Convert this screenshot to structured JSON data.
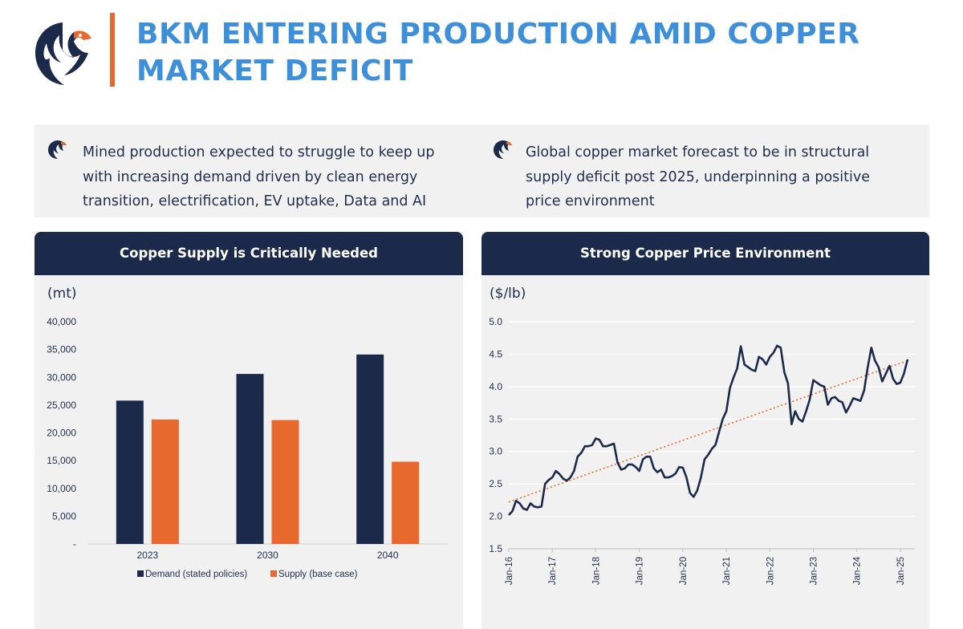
{
  "header": {
    "title": "BKM ENTERING PRODUCTION AMID COPPER MARKET DEFICIT",
    "logo_icon": "eagle-logo-icon",
    "accent_color": "#e8692e",
    "title_color": "#3d8fd9"
  },
  "bullets": [
    {
      "icon": "eagle-bullet-icon",
      "text": "Mined production expected to struggle to keep up with increasing demand driven by clean energy transition, electrification, EV uptake, Data and AI"
    },
    {
      "icon": "eagle-bullet-icon",
      "text": "Global copper market forecast to be in structural supply deficit post 2025, underpinning a positive price environment"
    }
  ],
  "panels": {
    "left": {
      "title": "Copper Supply is Critically Needed",
      "unit": "(mt)"
    },
    "right": {
      "title": "Strong Copper Price Environment",
      "unit": "($/lb)"
    }
  },
  "colors": {
    "navy": "#1b2a4b",
    "orange": "#e8692e",
    "panel_bg": "#f1f1f1"
  },
  "chart_data": [
    {
      "type": "bar",
      "title": "Copper Supply is Critically Needed",
      "ylabel": "(mt)",
      "categories": [
        "2023",
        "2030",
        "2040"
      ],
      "series": [
        {
          "name": "Demand (stated policies)",
          "color": "#1b2a4b",
          "values": [
            25800,
            30600,
            34100
          ]
        },
        {
          "name": "Supply (base case)",
          "color": "#e8692e",
          "values": [
            22400,
            22300,
            14800
          ]
        }
      ],
      "ylim": [
        0,
        40000
      ],
      "yticks": [
        0,
        5000,
        10000,
        15000,
        20000,
        25000,
        30000,
        35000,
        40000
      ],
      "ytick_labels": [
        "-",
        "5,000",
        "10,000",
        "15,000",
        "20,000",
        "25,000",
        "30,000",
        "35,000",
        "40,000"
      ],
      "grid": false,
      "legend": "bottom"
    },
    {
      "type": "line",
      "title": "Strong Copper Price Environment",
      "ylabel": "($/lb)",
      "ylim": [
        1.5,
        5.0
      ],
      "yticks": [
        1.5,
        2.0,
        2.5,
        3.0,
        3.5,
        4.0,
        4.5,
        5.0
      ],
      "ytick_labels": [
        "1.5",
        "2.0",
        "2.5",
        "3.0",
        "3.5",
        "4.0",
        "4.5",
        "5.0"
      ],
      "xlim": [
        "2016-01",
        "2025-05"
      ],
      "xticks": [
        "2016-01",
        "2017-01",
        "2018-01",
        "2019-01",
        "2020-01",
        "2021-01",
        "2022-01",
        "2023-01",
        "2024-01",
        "2025-01"
      ],
      "xtick_labels": [
        "Jan-16",
        "Jan-17",
        "Jan-18",
        "Jan-19",
        "Jan-20",
        "Jan-21",
        "Jan-22",
        "Jan-23",
        "Jan-24",
        "Jan-25"
      ],
      "grid": true,
      "series": [
        {
          "color": "#1b2a4b",
          "points": [
            [
              "2016-01",
              2.02
            ],
            [
              "2016-02",
              2.08
            ],
            [
              "2016-03",
              2.24
            ],
            [
              "2016-04",
              2.2
            ],
            [
              "2016-05",
              2.12
            ],
            [
              "2016-06",
              2.1
            ],
            [
              "2016-07",
              2.2
            ],
            [
              "2016-08",
              2.15
            ],
            [
              "2016-09",
              2.14
            ],
            [
              "2016-10",
              2.15
            ],
            [
              "2016-11",
              2.5
            ],
            [
              "2016-12",
              2.56
            ],
            [
              "2017-01",
              2.6
            ],
            [
              "2017-02",
              2.7
            ],
            [
              "2017-03",
              2.65
            ],
            [
              "2017-04",
              2.58
            ],
            [
              "2017-05",
              2.55
            ],
            [
              "2017-06",
              2.6
            ],
            [
              "2017-07",
              2.7
            ],
            [
              "2017-08",
              2.92
            ],
            [
              "2017-09",
              2.98
            ],
            [
              "2017-10",
              3.08
            ],
            [
              "2017-11",
              3.08
            ],
            [
              "2017-12",
              3.1
            ],
            [
              "2018-01",
              3.2
            ],
            [
              "2018-02",
              3.18
            ],
            [
              "2018-03",
              3.08
            ],
            [
              "2018-04",
              3.08
            ],
            [
              "2018-05",
              3.1
            ],
            [
              "2018-06",
              3.12
            ],
            [
              "2018-07",
              2.83
            ],
            [
              "2018-08",
              2.72
            ],
            [
              "2018-09",
              2.74
            ],
            [
              "2018-10",
              2.8
            ],
            [
              "2018-11",
              2.8
            ],
            [
              "2018-12",
              2.76
            ],
            [
              "2019-01",
              2.7
            ],
            [
              "2019-02",
              2.88
            ],
            [
              "2019-03",
              2.92
            ],
            [
              "2019-04",
              2.92
            ],
            [
              "2019-05",
              2.74
            ],
            [
              "2019-06",
              2.68
            ],
            [
              "2019-07",
              2.72
            ],
            [
              "2019-08",
              2.6
            ],
            [
              "2019-09",
              2.6
            ],
            [
              "2019-10",
              2.62
            ],
            [
              "2019-11",
              2.66
            ],
            [
              "2019-12",
              2.76
            ],
            [
              "2020-01",
              2.75
            ],
            [
              "2020-02",
              2.6
            ],
            [
              "2020-03",
              2.36
            ],
            [
              "2020-04",
              2.3
            ],
            [
              "2020-05",
              2.4
            ],
            [
              "2020-06",
              2.6
            ],
            [
              "2020-07",
              2.88
            ],
            [
              "2020-08",
              2.95
            ],
            [
              "2020-09",
              3.04
            ],
            [
              "2020-10",
              3.1
            ],
            [
              "2020-11",
              3.3
            ],
            [
              "2020-12",
              3.5
            ],
            [
              "2021-01",
              3.62
            ],
            [
              "2021-02",
              3.98
            ],
            [
              "2021-03",
              4.14
            ],
            [
              "2021-04",
              4.28
            ],
            [
              "2021-05",
              4.62
            ],
            [
              "2021-06",
              4.34
            ],
            [
              "2021-07",
              4.3
            ],
            [
              "2021-08",
              4.26
            ],
            [
              "2021-09",
              4.24
            ],
            [
              "2021-10",
              4.46
            ],
            [
              "2021-11",
              4.42
            ],
            [
              "2021-12",
              4.34
            ],
            [
              "2022-01",
              4.46
            ],
            [
              "2022-02",
              4.52
            ],
            [
              "2022-03",
              4.63
            ],
            [
              "2022-04",
              4.6
            ],
            [
              "2022-05",
              4.22
            ],
            [
              "2022-06",
              4.05
            ],
            [
              "2022-07",
              3.42
            ],
            [
              "2022-08",
              3.62
            ],
            [
              "2022-09",
              3.5
            ],
            [
              "2022-10",
              3.46
            ],
            [
              "2022-11",
              3.62
            ],
            [
              "2022-12",
              3.8
            ],
            [
              "2023-01",
              4.1
            ],
            [
              "2023-02",
              4.06
            ],
            [
              "2023-03",
              4.02
            ],
            [
              "2023-04",
              4.0
            ],
            [
              "2023-05",
              3.72
            ],
            [
              "2023-06",
              3.82
            ],
            [
              "2023-07",
              3.84
            ],
            [
              "2023-08",
              3.78
            ],
            [
              "2023-09",
              3.76
            ],
            [
              "2023-10",
              3.6
            ],
            [
              "2023-11",
              3.7
            ],
            [
              "2023-12",
              3.82
            ],
            [
              "2024-01",
              3.8
            ],
            [
              "2024-02",
              3.78
            ],
            [
              "2024-03",
              3.94
            ],
            [
              "2024-04",
              4.3
            ],
            [
              "2024-05",
              4.6
            ],
            [
              "2024-06",
              4.4
            ],
            [
              "2024-07",
              4.3
            ],
            [
              "2024-08",
              4.08
            ],
            [
              "2024-09",
              4.2
            ],
            [
              "2024-10",
              4.32
            ],
            [
              "2024-11",
              4.12
            ],
            [
              "2024-12",
              4.04
            ],
            [
              "2025-01",
              4.06
            ],
            [
              "2025-02",
              4.2
            ],
            [
              "2025-03",
              4.42
            ]
          ]
        }
      ],
      "trendline": {
        "color": "#e8692e",
        "style": "dotted",
        "start": [
          "2016-01",
          2.22
        ],
        "end": [
          "2025-03",
          4.4
        ]
      }
    }
  ]
}
